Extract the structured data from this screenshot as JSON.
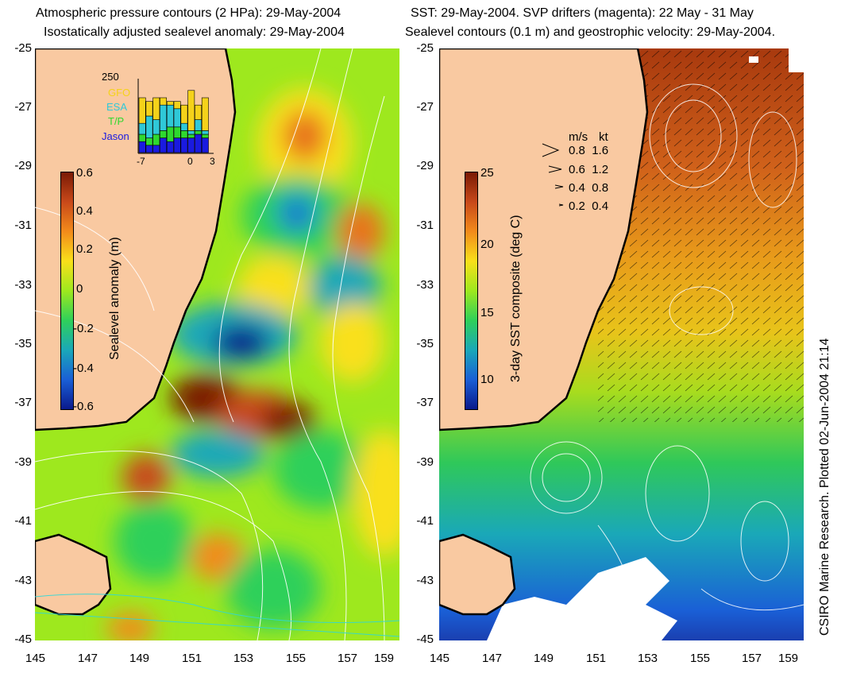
{
  "left_panel": {
    "title_line1": "Atmospheric pressure contours (2 HPa): 29-May-2004",
    "title_line2": "Isostatically adjusted sealevel anomaly: 29-May-2004",
    "colorbar": {
      "label": "Sealevel anomaly (m)",
      "ticks": [
        "0.6",
        "0.4",
        "0.2",
        "0",
        "-0.2",
        "-0.4",
        "-0.6"
      ],
      "colors": [
        "#7a1a05",
        "#c8491a",
        "#f28b1b",
        "#f9e01a",
        "#9ee81e",
        "#2fd05a",
        "#1aa8b8",
        "#1a5fd6",
        "#0a1a8c"
      ]
    },
    "inset": {
      "top_value": "250",
      "legend": [
        {
          "name": "GFO",
          "color": "#f5d21a"
        },
        {
          "name": "ESA",
          "color": "#2fc8d8"
        },
        {
          "name": "T/P",
          "color": "#2fd82f"
        },
        {
          "name": "Jason",
          "color": "#1a1ae0"
        }
      ],
      "xticks": [
        "-7",
        "0",
        "3"
      ]
    }
  },
  "right_panel": {
    "title_line1": "SST: 29-May-2004. SVP drifters (magenta): 22 May - 31 May",
    "title_line2": "Sealevel contours (0.1 m) and geostrophic velocity: 29-May-2004.",
    "colorbar": {
      "label": "3-day SST composite (deg C)",
      "ticks": [
        "25",
        "20",
        "15",
        "10"
      ],
      "colors": [
        "#7a1a05",
        "#c8491a",
        "#f28b1b",
        "#f9e01a",
        "#9ee81e",
        "#2fd05a",
        "#1aa8b8",
        "#1a5fd6",
        "#0a1a8c"
      ]
    },
    "velocity_legend": {
      "header_ms": "m/s",
      "header_kt": "kt",
      "rows": [
        {
          "ms": "0.8",
          "kt": "1.6"
        },
        {
          "ms": "0.6",
          "kt": "1.2"
        },
        {
          "ms": "0.4",
          "kt": "0.8"
        },
        {
          "ms": "0.2",
          "kt": "0.4"
        }
      ]
    }
  },
  "axes": {
    "yticks": [
      "-25",
      "-27",
      "-29",
      "-31",
      "-33",
      "-35",
      "-37",
      "-39",
      "-41",
      "-43",
      "-45"
    ],
    "xticks": [
      "145",
      "147",
      "149",
      "151",
      "153",
      "155",
      "157",
      "159"
    ]
  },
  "credit": "CSIRO Marine Research. Plotted 02-Jun-2004 21:14",
  "colors": {
    "land": "#f9c9a1",
    "coastline": "#000000"
  }
}
